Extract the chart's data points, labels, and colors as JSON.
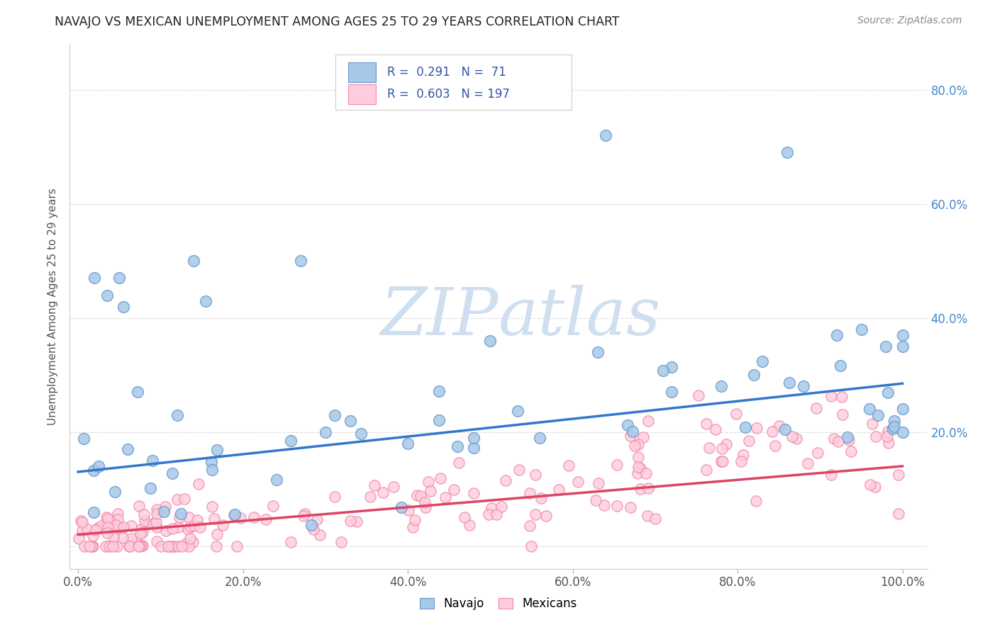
{
  "title": "NAVAJO VS MEXICAN UNEMPLOYMENT AMONG AGES 25 TO 29 YEARS CORRELATION CHART",
  "source": "Source: ZipAtlas.com",
  "ylabel": "Unemployment Among Ages 25 to 29 years",
  "navajo_color": "#a8c8e8",
  "navajo_edge": "#6699cc",
  "mexican_color": "#ffccdd",
  "mexican_edge": "#ee88aa",
  "line_navajo": "#3377cc",
  "line_mexican": "#dd4466",
  "legend_text_color": "#3355aa",
  "legend_box_color": "#dddddd",
  "watermark_color": "#d0dff0",
  "background_color": "#ffffff",
  "grid_color": "#dddddd",
  "title_color": "#222222",
  "source_color": "#888888",
  "ylabel_color": "#555555",
  "xtick_color": "#555555",
  "ytick_color": "#4488cc",
  "nav_line_start": 0.13,
  "nav_line_end": 0.285,
  "mex_line_start": 0.02,
  "mex_line_end": 0.14,
  "xlim_min": -0.01,
  "xlim_max": 1.03,
  "ylim_min": -0.04,
  "ylim_max": 0.88,
  "yticks": [
    0.0,
    0.2,
    0.4,
    0.6,
    0.8
  ],
  "ytick_labels": [
    "",
    "20.0%",
    "40.0%",
    "60.0%",
    "80.0%"
  ],
  "xticks": [
    0.0,
    0.2,
    0.4,
    0.6,
    0.8,
    1.0
  ],
  "xtick_labels": [
    "0.0%",
    "20.0%",
    "40.0%",
    "60.0%",
    "80.0%",
    "100.0%"
  ]
}
